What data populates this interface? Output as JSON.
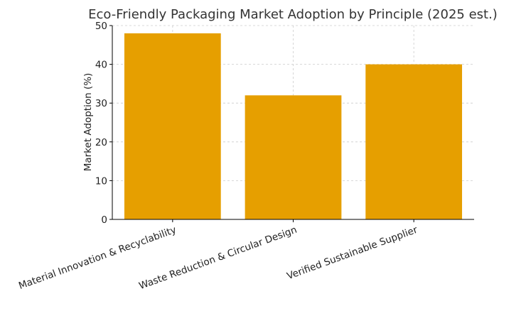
{
  "chart_data": {
    "type": "bar",
    "title": "Eco-Friendly Packaging Market Adoption by Principle (2025 est.)",
    "xlabel": "",
    "ylabel": "Market Adoption (%)",
    "categories": [
      "Material Innovation & Recyclability",
      "Waste Reduction & Circular Design",
      "Verified Sustainable Supplier"
    ],
    "values": [
      48,
      32,
      40
    ],
    "ylim": [
      0,
      50
    ],
    "yticks": [
      0,
      10,
      20,
      30,
      40,
      50
    ],
    "grid": true,
    "bar_color": "#E69F00"
  }
}
